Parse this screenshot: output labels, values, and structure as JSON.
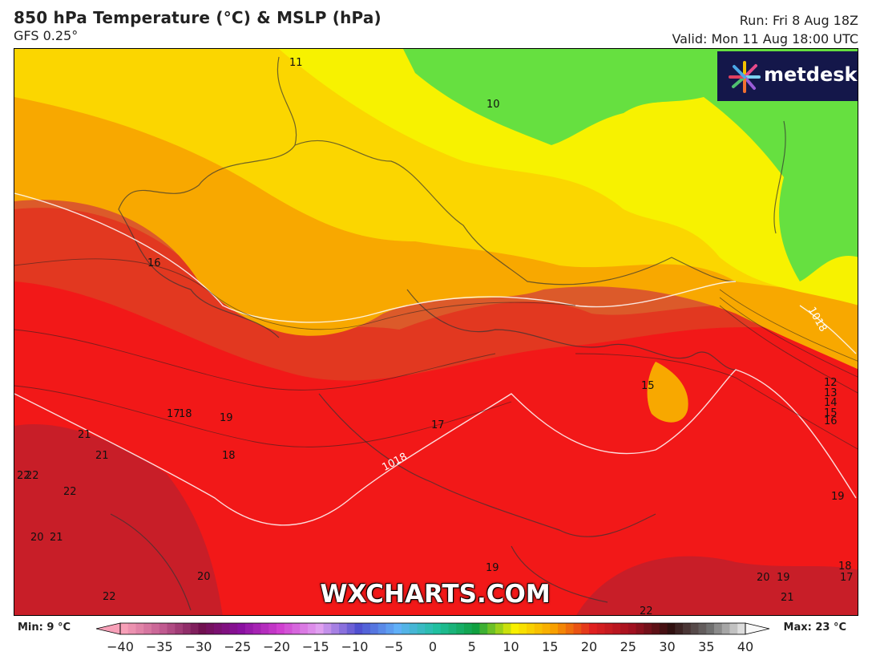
{
  "header": {
    "title": "850 hPa Temperature (°C) & MSLP (hPa)",
    "model": "GFS 0.25°",
    "run": "Run: Fri 8 Aug 18Z",
    "valid": "Valid: Mon 11 Aug 18:00 UTC"
  },
  "brand": {
    "logo_text": "metdesk",
    "watermark": "WXCHARTS.COM"
  },
  "legend": {
    "min_label": "Min: 9 °C",
    "max_label": "Max: 23 °C",
    "ticks": [
      "−40",
      "−35",
      "−30",
      "−25",
      "−20",
      "−15",
      "−10",
      "−5",
      "0",
      "5",
      "10",
      "15",
      "20",
      "25",
      "30",
      "35",
      "40"
    ],
    "range": [
      -40,
      40
    ]
  },
  "contour_labels": [
    "11",
    "10",
    "16",
    "15",
    "17",
    "18",
    "19",
    "17",
    "18",
    "21",
    "21",
    "22",
    "22",
    "22",
    "20",
    "21",
    "22",
    "20",
    "19",
    "18",
    "17",
    "12",
    "13",
    "14",
    "15",
    "16",
    "19",
    "21",
    "22",
    "20",
    "19"
  ],
  "isobar_labels": [
    "1018",
    "1018"
  ],
  "colors": {
    "t9": "#66e040",
    "t10": "#f7f200",
    "t12": "#fbd600",
    "t14": "#f8a800",
    "t16": "#dc5a2a",
    "t18": "#e23820",
    "t20": "#f21818",
    "t22": "#c81e28"
  }
}
